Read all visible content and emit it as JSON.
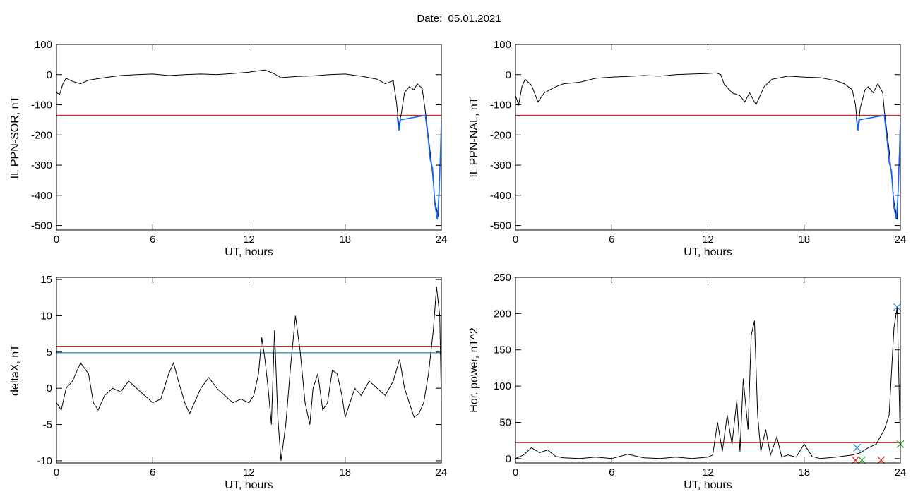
{
  "page": {
    "title": "Date:  05.01.2021"
  },
  "colors": {
    "data_line": "#000000",
    "threshold_red": "#e02020",
    "threshold_blue": "#1e88c8",
    "highlight_blue": "#1565ff",
    "marker_green": "#1aa31a"
  },
  "chart_data": [
    {
      "type": "line",
      "ylabel": "IL PPN-SOR, nT",
      "xlabel": "UT, hours",
      "xlim": [
        0,
        24
      ],
      "ylim": [
        -515,
        100
      ],
      "xticks": [
        0,
        6,
        12,
        18,
        24
      ],
      "xtick_labels": [
        "0",
        "6",
        "12",
        "18",
        "24"
      ],
      "yticks": [
        100,
        0,
        -100,
        -200,
        -300,
        -400,
        -500
      ],
      "ytick_labels": [
        "100",
        "0",
        "-100",
        "-200",
        "-300",
        "-400",
        "-500"
      ],
      "thresholds": [
        {
          "y": -135,
          "color": "#e02020"
        }
      ],
      "series": [
        {
          "color": "#000000",
          "points": [
            [
              0,
              -60
            ],
            [
              0.2,
              -65
            ],
            [
              0.4,
              -30
            ],
            [
              0.6,
              -12
            ],
            [
              1,
              -22
            ],
            [
              1.5,
              -30
            ],
            [
              2,
              -18
            ],
            [
              3,
              -10
            ],
            [
              4,
              -3
            ],
            [
              5,
              0
            ],
            [
              6,
              2
            ],
            [
              7,
              -3
            ],
            [
              8,
              0
            ],
            [
              9,
              2
            ],
            [
              10,
              0
            ],
            [
              11,
              4
            ],
            [
              12,
              8
            ],
            [
              12.5,
              12
            ],
            [
              13,
              15
            ],
            [
              13.5,
              5
            ],
            [
              14,
              -10
            ],
            [
              15,
              -6
            ],
            [
              16,
              -4
            ],
            [
              17,
              0
            ],
            [
              18,
              2
            ],
            [
              19,
              -5
            ],
            [
              20,
              -15
            ],
            [
              20.5,
              -30
            ],
            [
              21,
              -20
            ],
            [
              21.2,
              -90
            ],
            [
              21.35,
              -170
            ],
            [
              21.5,
              -130
            ],
            [
              21.7,
              -60
            ],
            [
              22,
              -40
            ],
            [
              22.3,
              -50
            ],
            [
              22.5,
              -30
            ],
            [
              22.8,
              -45
            ],
            [
              23,
              -120
            ],
            [
              23.2,
              -210
            ],
            [
              23.4,
              -300
            ],
            [
              23.6,
              -420
            ],
            [
              23.8,
              -470
            ],
            [
              24,
              -180
            ]
          ]
        },
        {
          "color": "#1565ff",
          "points": [
            [
              21.25,
              -140
            ],
            [
              21.35,
              -185
            ],
            [
              21.45,
              -150
            ],
            [
              23,
              -135
            ],
            [
              23.2,
              -220
            ],
            [
              23.3,
              -280
            ],
            [
              23.45,
              -310
            ],
            [
              23.6,
              -430
            ],
            [
              23.75,
              -480
            ],
            [
              23.85,
              -400
            ],
            [
              23.95,
              -250
            ],
            [
              24,
              -150
            ]
          ]
        }
      ]
    },
    {
      "type": "line",
      "ylabel": "IL PPN-NAL, nT",
      "xlabel": "UT, hours",
      "xlim": [
        0,
        24
      ],
      "ylim": [
        -515,
        100
      ],
      "xticks": [
        0,
        6,
        12,
        18,
        24
      ],
      "xtick_labels": [
        "0",
        "6",
        "12",
        "18",
        "24"
      ],
      "yticks": [
        100,
        0,
        -100,
        -200,
        -300,
        -400,
        -500
      ],
      "ytick_labels": [
        "100",
        "0",
        "-100",
        "-200",
        "-300",
        "-400",
        "-500"
      ],
      "thresholds": [
        {
          "y": -135,
          "color": "#e02020"
        }
      ],
      "series": [
        {
          "color": "#000000",
          "points": [
            [
              0,
              -70
            ],
            [
              0.2,
              -100
            ],
            [
              0.4,
              -40
            ],
            [
              0.6,
              -15
            ],
            [
              1,
              -35
            ],
            [
              1.4,
              -90
            ],
            [
              1.8,
              -60
            ],
            [
              2.5,
              -40
            ],
            [
              3,
              -30
            ],
            [
              4,
              -25
            ],
            [
              5,
              -12
            ],
            [
              6,
              -8
            ],
            [
              7,
              -6
            ],
            [
              8,
              -3
            ],
            [
              9,
              -5
            ],
            [
              10,
              0
            ],
            [
              11,
              2
            ],
            [
              12,
              4
            ],
            [
              12.5,
              6
            ],
            [
              12.8,
              0
            ],
            [
              13,
              -30
            ],
            [
              13.5,
              -60
            ],
            [
              14,
              -70
            ],
            [
              14.3,
              -90
            ],
            [
              14.6,
              -60
            ],
            [
              15,
              -100
            ],
            [
              15.5,
              -40
            ],
            [
              16,
              -15
            ],
            [
              17,
              -5
            ],
            [
              18,
              -8
            ],
            [
              19,
              -10
            ],
            [
              20,
              -20
            ],
            [
              20.5,
              -30
            ],
            [
              21,
              -50
            ],
            [
              21.2,
              -100
            ],
            [
              21.35,
              -180
            ],
            [
              21.5,
              -110
            ],
            [
              21.8,
              -50
            ],
            [
              22,
              -40
            ],
            [
              22.3,
              -60
            ],
            [
              22.6,
              -30
            ],
            [
              22.9,
              -60
            ],
            [
              23,
              -120
            ],
            [
              23.3,
              -250
            ],
            [
              23.6,
              -420
            ],
            [
              23.8,
              -480
            ],
            [
              24,
              -150
            ]
          ]
        },
        {
          "color": "#1565ff",
          "points": [
            [
              21.25,
              -140
            ],
            [
              21.35,
              -185
            ],
            [
              21.45,
              -150
            ],
            [
              23,
              -135
            ],
            [
              23.2,
              -230
            ],
            [
              23.3,
              -290
            ],
            [
              23.45,
              -320
            ],
            [
              23.6,
              -440
            ],
            [
              23.75,
              -480
            ],
            [
              23.85,
              -400
            ],
            [
              23.95,
              -250
            ],
            [
              24,
              -150
            ]
          ]
        }
      ]
    },
    {
      "type": "line",
      "ylabel": "deltaX, nT",
      "xlabel": "UT, hours",
      "xlim": [
        0,
        24
      ],
      "ylim": [
        -10.3,
        15.3
      ],
      "xticks": [
        0,
        6,
        12,
        18,
        24
      ],
      "xtick_labels": [
        "0",
        "6",
        "12",
        "18",
        "24"
      ],
      "yticks": [
        15,
        10,
        5,
        0,
        -5,
        -10
      ],
      "ytick_labels": [
        "15",
        "10",
        "5",
        "0",
        "-5",
        "-10"
      ],
      "thresholds": [
        {
          "y": 5.8,
          "color": "#e02020"
        },
        {
          "y": 4.9,
          "color": "#1e88c8"
        }
      ],
      "series": [
        {
          "color": "#000000",
          "points": [
            [
              0,
              -2
            ],
            [
              0.3,
              -3
            ],
            [
              0.6,
              0
            ],
            [
              1,
              1
            ],
            [
              1.5,
              3.5
            ],
            [
              2,
              2
            ],
            [
              2.3,
              -2
            ],
            [
              2.6,
              -3
            ],
            [
              3,
              -1
            ],
            [
              3.5,
              0
            ],
            [
              4,
              -0.5
            ],
            [
              4.5,
              1
            ],
            [
              5,
              0
            ],
            [
              5.5,
              -1
            ],
            [
              6,
              -2
            ],
            [
              6.5,
              -1.5
            ],
            [
              7,
              2
            ],
            [
              7.3,
              3.5
            ],
            [
              7.6,
              1
            ],
            [
              8,
              -2
            ],
            [
              8.3,
              -3.5
            ],
            [
              8.6,
              -2
            ],
            [
              9,
              0
            ],
            [
              9.5,
              1.5
            ],
            [
              10,
              0
            ],
            [
              10.5,
              -1
            ],
            [
              11,
              -2
            ],
            [
              11.5,
              -1.5
            ],
            [
              12,
              -2
            ],
            [
              12.3,
              -1
            ],
            [
              12.6,
              2
            ],
            [
              12.8,
              7
            ],
            [
              13,
              4
            ],
            [
              13.2,
              0
            ],
            [
              13.4,
              -5
            ],
            [
              13.6,
              8
            ],
            [
              13.8,
              -4
            ],
            [
              14,
              -10
            ],
            [
              14.3,
              -5
            ],
            [
              14.6,
              3
            ],
            [
              14.9,
              10
            ],
            [
              15.2,
              5
            ],
            [
              15.5,
              -2
            ],
            [
              15.8,
              -5
            ],
            [
              16,
              0
            ],
            [
              16.3,
              2
            ],
            [
              16.6,
              -3
            ],
            [
              16.9,
              -2
            ],
            [
              17.2,
              2.5
            ],
            [
              17.5,
              2
            ],
            [
              17.8,
              -1
            ],
            [
              18,
              -4
            ],
            [
              18.3,
              -2
            ],
            [
              18.6,
              0
            ],
            [
              19,
              -1
            ],
            [
              19.5,
              1
            ],
            [
              20,
              0
            ],
            [
              20.5,
              -1
            ],
            [
              21,
              1
            ],
            [
              21.4,
              4
            ],
            [
              21.7,
              0
            ],
            [
              22,
              -2
            ],
            [
              22.3,
              -4
            ],
            [
              22.6,
              -3.5
            ],
            [
              22.9,
              -2
            ],
            [
              23.2,
              2
            ],
            [
              23.5,
              8
            ],
            [
              23.7,
              14
            ],
            [
              23.9,
              10
            ],
            [
              24,
              -2
            ]
          ]
        }
      ]
    },
    {
      "type": "line",
      "ylabel": "Hor. power, nT^2",
      "xlabel": "UT, hours",
      "xlim": [
        0,
        24
      ],
      "ylim": [
        -6,
        250
      ],
      "xticks": [
        0,
        6,
        12,
        18,
        24
      ],
      "xtick_labels": [
        "0",
        "6",
        "12",
        "18",
        "24"
      ],
      "yticks": [
        250,
        200,
        150,
        100,
        50,
        0
      ],
      "ytick_labels": [
        "250",
        "200",
        "150",
        "100",
        "50",
        "0"
      ],
      "thresholds": [
        {
          "y": 22,
          "color": "#e02020"
        }
      ],
      "markers": [
        {
          "x": 21.3,
          "y": 15,
          "color": "#1e88c8"
        },
        {
          "x": 21.6,
          "y": -2,
          "color": "#1aa31a"
        },
        {
          "x": 22.8,
          "y": -2,
          "color": "#e02020"
        },
        {
          "x": 21.2,
          "y": -2,
          "color": "#e02020"
        },
        {
          "x": 23.8,
          "y": 209,
          "color": "#1e88c8"
        },
        {
          "x": 24,
          "y": 20,
          "color": "#1aa31a"
        }
      ],
      "series": [
        {
          "color": "#000000",
          "points": [
            [
              0,
              0
            ],
            [
              0.5,
              5
            ],
            [
              1,
              15
            ],
            [
              1.5,
              8
            ],
            [
              2,
              12
            ],
            [
              2.5,
              3
            ],
            [
              3,
              1
            ],
            [
              4,
              0
            ],
            [
              5,
              2
            ],
            [
              6,
              0
            ],
            [
              7,
              6
            ],
            [
              8,
              1
            ],
            [
              9,
              0
            ],
            [
              10,
              2
            ],
            [
              11,
              0
            ],
            [
              12,
              2
            ],
            [
              12.3,
              5
            ],
            [
              12.6,
              50
            ],
            [
              12.9,
              10
            ],
            [
              13.2,
              60
            ],
            [
              13.5,
              20
            ],
            [
              13.8,
              80
            ],
            [
              14,
              10
            ],
            [
              14.2,
              110
            ],
            [
              14.5,
              40
            ],
            [
              14.7,
              170
            ],
            [
              14.9,
              190
            ],
            [
              15.1,
              60
            ],
            [
              15.3,
              10
            ],
            [
              15.6,
              40
            ],
            [
              15.9,
              5
            ],
            [
              16.3,
              30
            ],
            [
              16.6,
              2
            ],
            [
              17,
              5
            ],
            [
              17.5,
              2
            ],
            [
              18,
              20
            ],
            [
              18.5,
              3
            ],
            [
              19,
              0
            ],
            [
              20,
              2
            ],
            [
              21,
              5
            ],
            [
              21.5,
              8
            ],
            [
              22,
              15
            ],
            [
              22.5,
              20
            ],
            [
              23,
              40
            ],
            [
              23.3,
              60
            ],
            [
              23.6,
              180
            ],
            [
              23.8,
              209
            ],
            [
              24,
              20
            ]
          ]
        }
      ]
    }
  ]
}
